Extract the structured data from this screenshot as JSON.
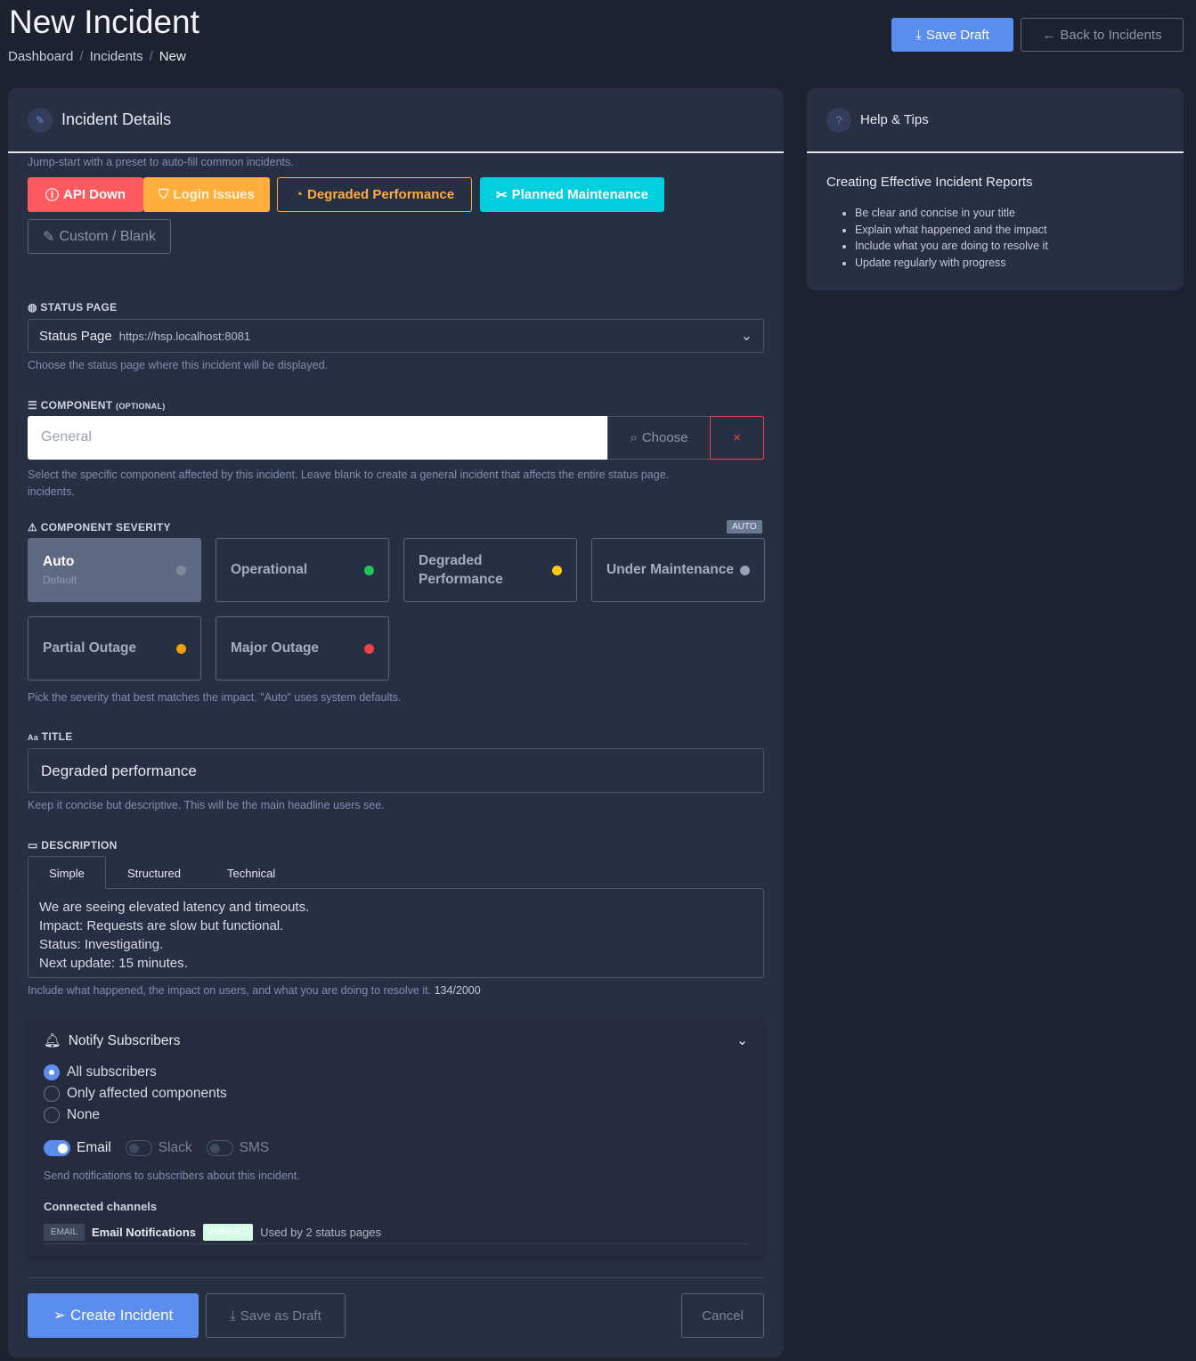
{
  "header": {
    "title": "New Incident",
    "breadcrumb": [
      "Dashboard",
      "Incidents",
      "New"
    ],
    "save_draft": "Save Draft",
    "back": "Back to Incidents"
  },
  "details": {
    "title": "Incident Details",
    "preset_hint": "Jump-start with a preset to auto-fill common incidents.",
    "presets": [
      "API Down",
      "Login Issues",
      "Degraded Performance",
      "Planned Maintenance",
      "Custom / Blank"
    ]
  },
  "status_page": {
    "label": "STATUS PAGE",
    "value": "Status Page",
    "url": "https://hsp.localhost:8081",
    "hint": "Choose the status page where this incident will be displayed."
  },
  "component": {
    "label": "COMPONENT",
    "optional": "(OPTIONAL)",
    "placeholder": "General",
    "choose": "Choose",
    "clear": "×",
    "hint": "Select the specific component affected by this incident. Leave blank to create a general incident that affects the entire status page.",
    "hint2": "incidents."
  },
  "severity": {
    "label": "COMPONENT SEVERITY",
    "badge": "AUTO",
    "auto": "Auto",
    "auto_sub": "Default",
    "selected": "Auto",
    "options": [
      {
        "label": "Operational",
        "color": "#22c55e"
      },
      {
        "label": "Degraded Performance",
        "color": "#facc15"
      },
      {
        "label": "Under Maintenance",
        "color": "#94a3b8"
      },
      {
        "label": "Partial Outage",
        "color": "#f59e0b"
      },
      {
        "label": "Major Outage",
        "color": "#ef4444"
      }
    ],
    "hint": "Pick the severity that best matches the impact. \"Auto\" uses system defaults."
  },
  "title_field": {
    "label": "TITLE",
    "prefix": "Aa",
    "value": "Degraded performance",
    "hint": "Keep it concise but descriptive. This will be the main headline users see."
  },
  "description": {
    "label": "DESCRIPTION",
    "tabs": [
      "Simple",
      "Structured",
      "Technical"
    ],
    "active_tab": "Simple",
    "lines": [
      "We are seeing elevated latency and timeouts.",
      "Impact: Requests are slow but functional.",
      "Status: Investigating.",
      "Next update: 15 minutes."
    ],
    "hint": "Include what happened, the impact on users, and what you are doing to resolve it.",
    "count": "134/2000"
  },
  "notify": {
    "title": "Notify Subscribers",
    "options": [
      "All subscribers",
      "Only affected components",
      "None"
    ],
    "selected": "All subscribers",
    "channels": [
      {
        "label": "Email",
        "on": true
      },
      {
        "label": "Slack",
        "on": false
      },
      {
        "label": "SMS",
        "on": false
      }
    ],
    "hint": "Send notifications to subscribers about this incident.",
    "connected_label": "Connected channels",
    "connected": {
      "type": "EMAIL",
      "name": "Email Notifications",
      "status": "VERIFIED",
      "usage": "Used by 2 status pages"
    }
  },
  "actions": {
    "create": "Create Incident",
    "draft": "Save as Draft",
    "cancel": "Cancel"
  },
  "help": {
    "title": "Help & Tips",
    "heading": "Creating Effective Incident Reports",
    "tips": [
      "Be clear and concise in your title",
      "Explain what happened and the impact",
      "Include what you are doing to resolve it",
      "Update regularly with progress"
    ]
  },
  "colors": {
    "primary": "#5b8def",
    "danger": "#ff5a5f",
    "warning": "#ffad3b",
    "info": "#00cfdd"
  }
}
